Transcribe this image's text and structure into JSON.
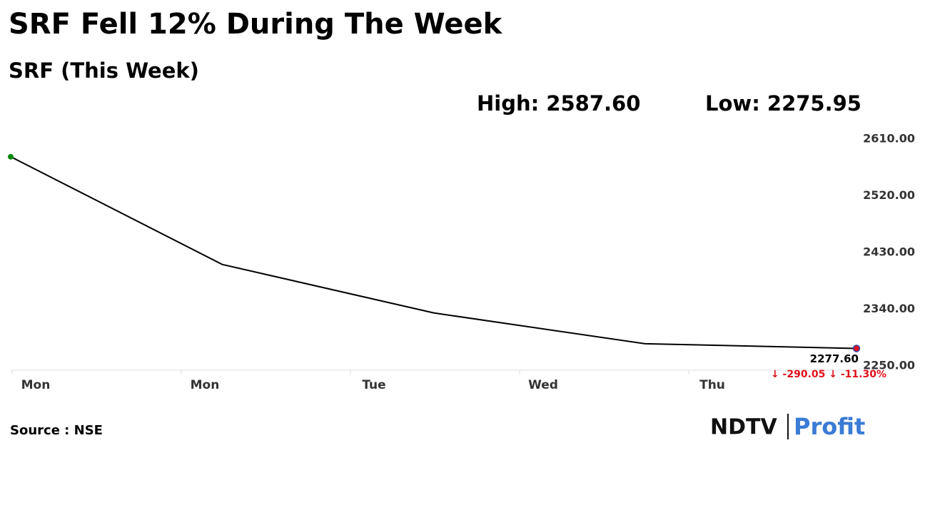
{
  "chart_data": {
    "type": "line",
    "title": "SRF Fell 12% During The Week",
    "subtitle": "SRF (This Week)",
    "high": "High: 2587.60",
    "low": "Low: 2275.95",
    "categories": [
      "Mon",
      "Mon",
      "Tue",
      "Wed",
      "Thu"
    ],
    "values": [
      2582,
      2411,
      2334,
      2285,
      2277.6
    ],
    "value_labels": [
      null,
      null,
      null,
      null,
      "2277.60"
    ],
    "change_label": "↓ -290.05 ↓ -11.30%",
    "color": "#000000",
    "start_color": "#0a8a0a",
    "end_color": "#e0101a",
    "ylim": [
      2243,
      2610
    ],
    "yticks": [
      {
        "value": 2610,
        "label": "2610.00"
      },
      {
        "value": 2520,
        "label": "2520.00"
      },
      {
        "value": 2430,
        "label": "2430.00"
      },
      {
        "value": 2340,
        "label": "2340.00"
      },
      {
        "value": 2250,
        "label": "2250.00"
      }
    ],
    "source": "Source : NSE",
    "logo": [
      "NDTV",
      "Profit"
    ]
  }
}
